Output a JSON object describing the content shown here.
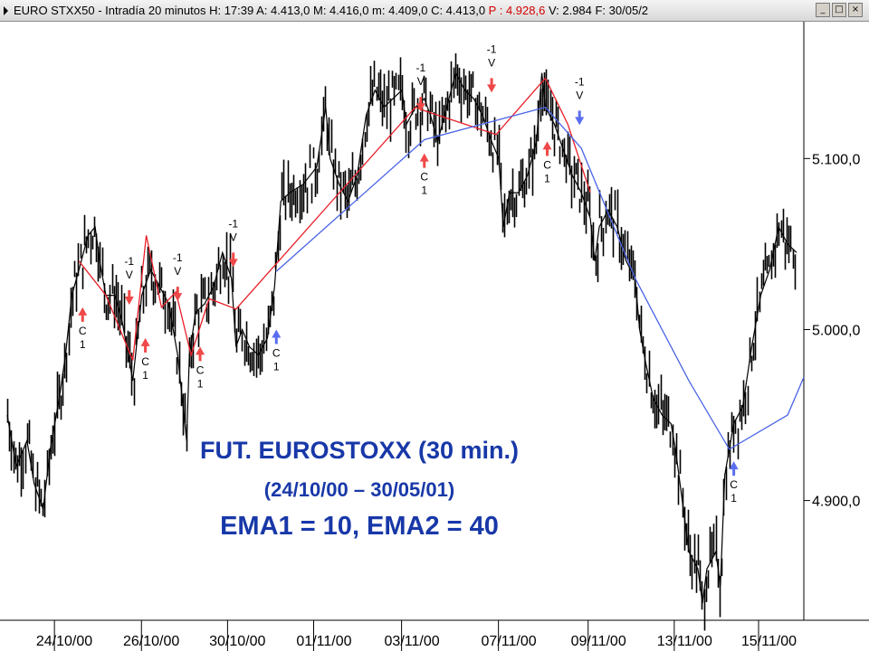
{
  "header": {
    "instrument": "EURO STXX50",
    "interval": "Intradía 20 minutos",
    "fields_pre": "H: 17:39  A: 4.413,0  M: 4.416,0  m: 4.409,0  C: 4.413,0 ",
    "field_p": "P : 4.928,6",
    "fields_post": " V: 2.984  F: 30/05/2",
    "min_btn": "_",
    "max_btn": "□",
    "close_btn": "×"
  },
  "colors": {
    "price": "#000000",
    "ema_fast": "#e8202a",
    "ema_slow": "#4a64e6",
    "sell": "#f04848",
    "buy_red": "#f04848",
    "buy_blue": "#5a6ef0",
    "title": "#1838a8"
  },
  "overlay": {
    "line1": "FUT. EUROSTOXX (30  min.)",
    "line2": "(24/10/00 – 30/05/01)",
    "line3": "EMA1 = 10, EMA2 = 40"
  },
  "chart_data": {
    "type": "line",
    "ylim": [
      4830,
      5180
    ],
    "y_ticks": [
      5100,
      5000,
      4900
    ],
    "y_tick_labels": [
      "5.100,0",
      "5.000,0",
      "4.900,0"
    ],
    "x_range": [
      0,
      880
    ],
    "x_tick_labels": [
      {
        "label": "24/10/00",
        "t": 95
      },
      {
        "label": "26/10/00",
        "t": 192
      },
      {
        "label": "30/10/00",
        "t": 288
      },
      {
        "label": "01/11/00",
        "t": 384
      },
      {
        "label": "03/11/00",
        "t": 482
      },
      {
        "label": "07/11/00",
        "t": 590
      },
      {
        "label": "09/11/00",
        "t": 690
      },
      {
        "label": "13/11/00",
        "t": 786
      },
      {
        "label": "15/11/00",
        "t": 880
      }
    ],
    "series": [
      {
        "role": "price",
        "style": "bars",
        "t": [
          0,
          10,
          22,
          30,
          40,
          48,
          58,
          65,
          72,
          80,
          90,
          98,
          103,
          110,
          120,
          128,
          135,
          140,
          145,
          150,
          160,
          170,
          180,
          190,
          195,
          200,
          203,
          210,
          220,
          230,
          240,
          250,
          255,
          262,
          270,
          280,
          290,
          298,
          305,
          315,
          330,
          345,
          355,
          360,
          370,
          380,
          390,
          400,
          410,
          420,
          430,
          440,
          445,
          455,
          465,
          472,
          480,
          490,
          500,
          510,
          520,
          530,
          540,
          548,
          553,
          560,
          570,
          580,
          590,
          596,
          600,
          610,
          620,
          630,
          640,
          650,
          655,
          660,
          670,
          680,
          690,
          700,
          705,
          712,
          720,
          730,
          740,
          745,
          750,
          760,
          770,
          775,
          780,
          790,
          795,
          800,
          810,
          820,
          830,
          840,
          850,
          860,
          870,
          880
        ],
        "values": [
          4950,
          4920,
          4935,
          4910,
          4895,
          4930,
          4960,
          4985,
          5020,
          5035,
          5055,
          5060,
          5040,
          5020,
          5020,
          5005,
          4985,
          4970,
          4995,
          5020,
          5035,
          5025,
          5015,
          4985,
          4960,
          4935,
          4985,
          5010,
          5015,
          5025,
          5045,
          5030,
          4990,
          5000,
          4990,
          4985,
          4995,
          5025,
          5075,
          5080,
          5085,
          5095,
          5130,
          5100,
          5085,
          5075,
          5090,
          5125,
          5140,
          5130,
          5135,
          5140,
          5120,
          5130,
          5135,
          5125,
          5110,
          5130,
          5150,
          5140,
          5135,
          5125,
          5110,
          5100,
          5060,
          5080,
          5080,
          5090,
          5110,
          5150,
          5130,
          5120,
          5105,
          5090,
          5080,
          5065,
          5040,
          5060,
          5070,
          5060,
          5040,
          5030,
          5000,
          4980,
          4960,
          4950,
          4945,
          4930,
          4910,
          4870,
          4860,
          4840,
          4860,
          4870,
          4850,
          4915,
          4945,
          4955,
          4990,
          5020,
          5035,
          5060,
          5050,
          5045
        ]
      },
      {
        "name": "EMA1",
        "role": "ema_fast",
        "t": [
          80,
          110,
          140,
          155,
          172,
          188,
          205,
          225,
          255,
          455,
          465,
          545,
          600,
          625,
          650
        ],
        "values": [
          5040,
          5020,
          4982,
          5055,
          5013,
          5022,
          4985,
          5018,
          5012,
          5130,
          5128,
          5114,
          5147,
          5120,
          5080
        ]
      },
      {
        "name": "EMA2",
        "role": "ema_slow",
        "t": [
          300,
          465,
          600,
          640,
          700,
          760,
          805,
          870,
          888
        ],
        "values": [
          5034,
          5111,
          5130,
          5106,
          5030,
          4970,
          4930,
          4950,
          4972
        ]
      }
    ],
    "signals": [
      {
        "kind": "buy",
        "color": "red",
        "t": 84,
        "price": 5013,
        "label": "C 1"
      },
      {
        "kind": "sell",
        "color": "red",
        "t": 136,
        "price": 5023,
        "label": "-1 V"
      },
      {
        "kind": "buy",
        "color": "red",
        "t": 154,
        "price": 4995,
        "label": "C 1"
      },
      {
        "kind": "sell",
        "color": "red",
        "t": 190,
        "price": 5025,
        "label": "-1 V"
      },
      {
        "kind": "buy",
        "color": "red",
        "t": 215,
        "price": 4990,
        "label": "C 1"
      },
      {
        "kind": "sell",
        "color": "red",
        "t": 252,
        "price": 5045,
        "label": "-1 V"
      },
      {
        "kind": "buy",
        "color": "blue",
        "t": 300,
        "price": 5000,
        "label": "C 1"
      },
      {
        "kind": "sell",
        "color": "red",
        "t": 461,
        "price": 5136,
        "label": "-1 V"
      },
      {
        "kind": "buy",
        "color": "red",
        "t": 465,
        "price": 5103,
        "label": "C 1"
      },
      {
        "kind": "sell",
        "color": "red",
        "t": 540,
        "price": 5147,
        "label": "-1 V"
      },
      {
        "kind": "buy",
        "color": "red",
        "t": 602,
        "price": 5110,
        "label": "C 1"
      },
      {
        "kind": "sell",
        "color": "blue",
        "t": 638,
        "price": 5128,
        "label": "-1 V"
      },
      {
        "kind": "buy",
        "color": "blue",
        "t": 810,
        "price": 4923,
        "label": "C 1"
      }
    ]
  }
}
